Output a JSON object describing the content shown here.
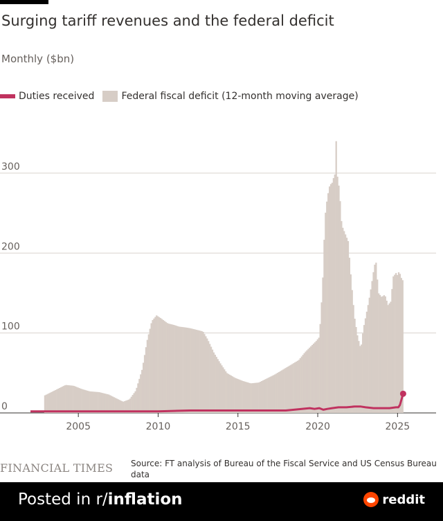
{
  "title": "Surging tariff revenues and the federal deficit",
  "subtitle": "Monthly ($bn)",
  "legend": {
    "duties": "Duties received",
    "deficit": "Federal fiscal deficit (12-month moving average)"
  },
  "colors": {
    "duties": "#c0325f",
    "deficit": "#d7cdc6",
    "grid": "#d9d3ce",
    "axis": "#33302e"
  },
  "chart_data": {
    "type": "bar",
    "title": "Surging tariff revenues and the federal deficit",
    "ylabel": "Monthly ($bn)",
    "xlim": [
      2002,
      2026.2
    ],
    "ylim": [
      0,
      345
    ],
    "yticks": [
      0,
      100,
      200,
      300
    ],
    "xticks": [
      2005,
      2010,
      2015,
      2020,
      2025
    ],
    "grid": true,
    "legend_position": "top-left",
    "series": [
      {
        "name": "Federal fiscal deficit (12-month moving average)",
        "type": "bar",
        "points": [
          [
            2002.9,
            22
          ],
          [
            2003.5,
            28
          ],
          [
            2004.2,
            35
          ],
          [
            2004.7,
            34
          ],
          [
            2005.2,
            30
          ],
          [
            2005.7,
            27
          ],
          [
            2006.3,
            26
          ],
          [
            2006.9,
            23
          ],
          [
            2007.4,
            18
          ],
          [
            2007.8,
            14
          ],
          [
            2008.2,
            17
          ],
          [
            2008.6,
            28
          ],
          [
            2009.0,
            55
          ],
          [
            2009.3,
            90
          ],
          [
            2009.6,
            115
          ],
          [
            2009.9,
            122
          ],
          [
            2010.2,
            118
          ],
          [
            2010.6,
            112
          ],
          [
            2011.0,
            110
          ],
          [
            2011.3,
            108
          ],
          [
            2011.7,
            107
          ],
          [
            2012.0,
            106
          ],
          [
            2012.4,
            104
          ],
          [
            2012.8,
            102
          ],
          [
            2013.1,
            92
          ],
          [
            2013.5,
            75
          ],
          [
            2013.9,
            62
          ],
          [
            2014.3,
            50
          ],
          [
            2014.8,
            44
          ],
          [
            2015.3,
            40
          ],
          [
            2015.8,
            37
          ],
          [
            2016.3,
            38
          ],
          [
            2016.8,
            43
          ],
          [
            2017.3,
            48
          ],
          [
            2017.8,
            54
          ],
          [
            2018.3,
            60
          ],
          [
            2018.8,
            66
          ],
          [
            2019.2,
            76
          ],
          [
            2019.6,
            84
          ],
          [
            2019.9,
            90
          ],
          [
            2020.1,
            95
          ],
          [
            2020.3,
            160
          ],
          [
            2020.45,
            245
          ],
          [
            2020.6,
            270
          ],
          [
            2020.75,
            285
          ],
          [
            2020.9,
            288
          ],
          [
            2021.0,
            295
          ],
          [
            2021.1,
            300
          ],
          [
            2021.15,
            340
          ],
          [
            2021.2,
            300
          ],
          [
            2021.35,
            280
          ],
          [
            2021.5,
            235
          ],
          [
            2021.7,
            225
          ],
          [
            2021.9,
            215
          ],
          [
            2022.1,
            165
          ],
          [
            2022.3,
            120
          ],
          [
            2022.5,
            95
          ],
          [
            2022.7,
            80
          ],
          [
            2022.85,
            105
          ],
          [
            2023.0,
            120
          ],
          [
            2023.2,
            140
          ],
          [
            2023.4,
            165
          ],
          [
            2023.55,
            185
          ],
          [
            2023.65,
            188
          ],
          [
            2023.8,
            150
          ],
          [
            2024.0,
            145
          ],
          [
            2024.2,
            148
          ],
          [
            2024.4,
            135
          ],
          [
            2024.6,
            140
          ],
          [
            2024.7,
            170
          ],
          [
            2024.9,
            175
          ],
          [
            2025.0,
            172
          ],
          [
            2025.1,
            178
          ],
          [
            2025.2,
            170
          ],
          [
            2025.35,
            165
          ]
        ]
      },
      {
        "name": "Duties received",
        "type": "line",
        "points": [
          [
            2002.0,
            2
          ],
          [
            2005.0,
            2
          ],
          [
            2008.0,
            2
          ],
          [
            2010.0,
            2
          ],
          [
            2012.0,
            3
          ],
          [
            2014.0,
            3
          ],
          [
            2016.0,
            3
          ],
          [
            2018.0,
            3
          ],
          [
            2018.5,
            4
          ],
          [
            2019.0,
            5
          ],
          [
            2019.5,
            6
          ],
          [
            2019.8,
            5
          ],
          [
            2020.1,
            6
          ],
          [
            2020.35,
            4
          ],
          [
            2020.6,
            5
          ],
          [
            2020.9,
            6
          ],
          [
            2021.3,
            7
          ],
          [
            2021.8,
            7
          ],
          [
            2022.3,
            8
          ],
          [
            2022.7,
            8
          ],
          [
            2023.0,
            7
          ],
          [
            2023.5,
            6
          ],
          [
            2024.0,
            6
          ],
          [
            2024.5,
            6
          ],
          [
            2024.9,
            7
          ],
          [
            2025.05,
            7
          ],
          [
            2025.15,
            10
          ],
          [
            2025.25,
            17
          ],
          [
            2025.35,
            24
          ]
        ]
      }
    ]
  },
  "footer": {
    "brand": "FINANCIAL TIMES",
    "source": "Source: FT analysis of Bureau of the Fiscal Service and US Census Bureau data"
  },
  "bottom_bar": {
    "posted_prefix": "Posted in r/",
    "subreddit": "inflation",
    "brand": "reddit"
  }
}
